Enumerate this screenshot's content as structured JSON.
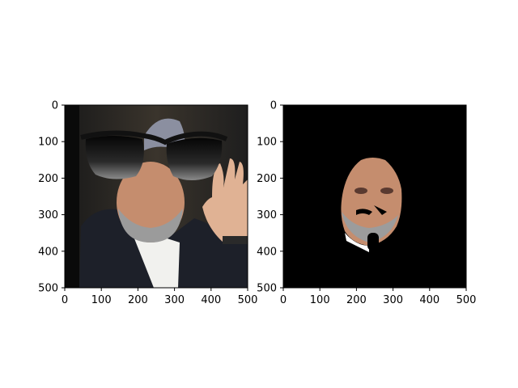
{
  "chart_data": [
    {
      "type": "image",
      "title": "",
      "xlabel": "",
      "ylabel": "",
      "xlim": [
        0,
        500
      ],
      "ylim": [
        500,
        0
      ],
      "x_ticks": [
        "0",
        "100",
        "200",
        "300",
        "400",
        "500"
      ],
      "y_ticks": [
        "0",
        "100",
        "200",
        "300",
        "400",
        "500"
      ],
      "grid": false,
      "content": "photo of a man in a dark suit and grey cap waving, with black sunglasses overlay"
    },
    {
      "type": "image",
      "title": "",
      "xlabel": "",
      "ylabel": "",
      "xlim": [
        0,
        500
      ],
      "ylim": [
        500,
        0
      ],
      "x_ticks": [
        "0",
        "100",
        "200",
        "300",
        "400",
        "500"
      ],
      "y_ticks": [
        "0",
        "100",
        "200",
        "300",
        "400",
        "500"
      ],
      "grid": false,
      "content": "black background with face-region mask cut-out"
    }
  ],
  "colors": {
    "background": "#ffffff",
    "axis": "#000000",
    "mask": "#000000"
  }
}
